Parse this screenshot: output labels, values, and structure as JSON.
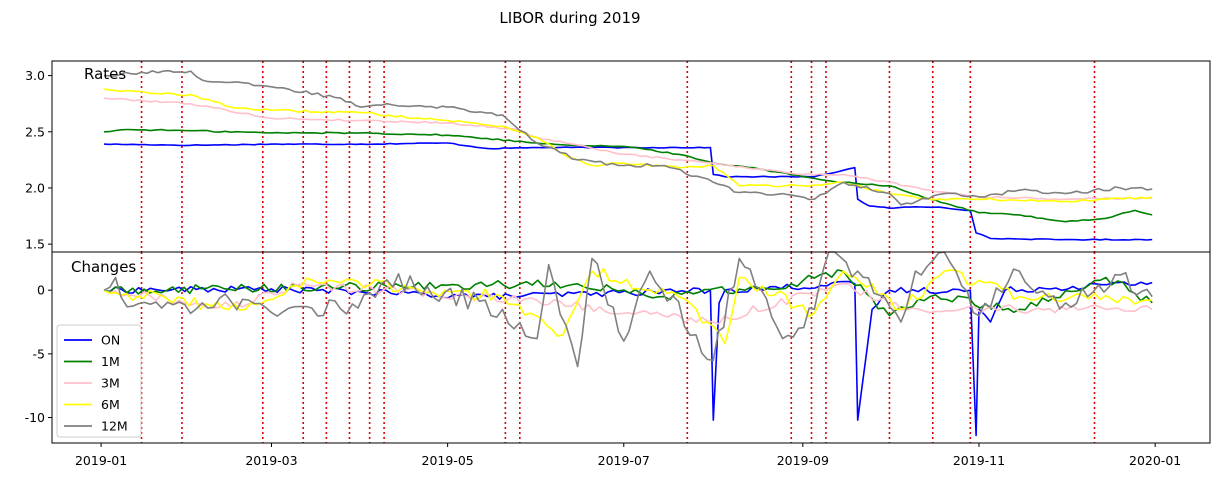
{
  "chart_data": {
    "type": "line",
    "title": "LIBOR during 2019",
    "x_start": "2019-01-01",
    "x_end": "2019-12-31",
    "x_domain": [
      "2018-12-15",
      "2020-01-20"
    ],
    "x_ticks": [
      "2019-01",
      "2019-03",
      "2019-05",
      "2019-07",
      "2019-09",
      "2019-11",
      "2020-01"
    ],
    "event_dates": [
      "2019-01-15",
      "2019-01-29",
      "2019-02-26",
      "2019-03-12",
      "2019-03-20",
      "2019-03-28",
      "2019-04-04",
      "2019-04-09",
      "2019-05-21",
      "2019-05-26",
      "2019-07-23",
      "2019-08-28",
      "2019-09-04",
      "2019-09-09",
      "2019-10-01",
      "2019-10-16",
      "2019-10-29",
      "2019-12-11"
    ],
    "event_color": "#e00000",
    "legend_placement": "lower-left",
    "series": [
      {
        "name": "ON",
        "color": "#0000ff"
      },
      {
        "name": "1M",
        "color": "#008000"
      },
      {
        "name": "3M",
        "color": "#ffc0cb"
      },
      {
        "name": "6M",
        "color": "#ffff00"
      },
      {
        "name": "12M",
        "color": "#808080"
      }
    ],
    "panels": [
      {
        "label": "Rates",
        "ylim": [
          1.43,
          3.13
        ],
        "yticks": [
          "1.5",
          "2.0",
          "2.5",
          "3.0"
        ],
        "values": {
          "ON": [
            [
              "2019-01-02",
              2.39
            ],
            [
              "2019-02-01",
              2.38
            ],
            [
              "2019-03-01",
              2.39
            ],
            [
              "2019-04-01",
              2.39
            ],
            [
              "2019-05-01",
              2.4
            ],
            [
              "2019-05-15",
              2.35
            ],
            [
              "2019-06-01",
              2.36
            ],
            [
              "2019-07-01",
              2.36
            ],
            [
              "2019-07-31",
              2.36
            ],
            [
              "2019-08-01",
              2.12
            ],
            [
              "2019-08-05",
              2.1
            ],
            [
              "2019-08-28",
              2.1
            ],
            [
              "2019-09-05",
              2.1
            ],
            [
              "2019-09-19",
              2.18
            ],
            [
              "2019-09-20",
              1.9
            ],
            [
              "2019-09-24",
              1.84
            ],
            [
              "2019-10-01",
              1.82
            ],
            [
              "2019-10-08",
              1.83
            ],
            [
              "2019-10-18",
              1.83
            ],
            [
              "2019-10-29",
              1.8
            ],
            [
              "2019-10-31",
              1.6
            ],
            [
              "2019-11-05",
              1.55
            ],
            [
              "2019-12-01",
              1.54
            ],
            [
              "2019-12-31",
              1.54
            ]
          ],
          "1M": [
            [
              "2019-01-02",
              2.5
            ],
            [
              "2019-01-10",
              2.52
            ],
            [
              "2019-02-01",
              2.51
            ],
            [
              "2019-03-01",
              2.49
            ],
            [
              "2019-04-01",
              2.49
            ],
            [
              "2019-05-01",
              2.47
            ],
            [
              "2019-06-01",
              2.4
            ],
            [
              "2019-06-15",
              2.38
            ],
            [
              "2019-07-01",
              2.37
            ],
            [
              "2019-07-20",
              2.3
            ],
            [
              "2019-08-01",
              2.22
            ],
            [
              "2019-08-15",
              2.18
            ],
            [
              "2019-09-01",
              2.1
            ],
            [
              "2019-09-15",
              2.05
            ],
            [
              "2019-10-01",
              2.02
            ],
            [
              "2019-10-15",
              1.9
            ],
            [
              "2019-11-01",
              1.78
            ],
            [
              "2019-11-15",
              1.76
            ],
            [
              "2019-12-01",
              1.7
            ],
            [
              "2019-12-15",
              1.73
            ],
            [
              "2019-12-25",
              1.8
            ],
            [
              "2019-12-31",
              1.76
            ]
          ],
          "3M": [
            [
              "2019-01-02",
              2.8
            ],
            [
              "2019-02-01",
              2.75
            ],
            [
              "2019-03-01",
              2.62
            ],
            [
              "2019-04-01",
              2.6
            ],
            [
              "2019-05-01",
              2.58
            ],
            [
              "2019-05-25",
              2.52
            ],
            [
              "2019-06-01",
              2.45
            ],
            [
              "2019-07-01",
              2.3
            ],
            [
              "2019-08-01",
              2.22
            ],
            [
              "2019-09-01",
              2.12
            ],
            [
              "2019-09-15",
              2.12
            ],
            [
              "2019-10-01",
              2.05
            ],
            [
              "2019-10-15",
              1.98
            ],
            [
              "2019-11-01",
              1.92
            ],
            [
              "2019-12-01",
              1.9
            ],
            [
              "2019-12-31",
              1.91
            ]
          ],
          "6M": [
            [
              "2019-01-02",
              2.88
            ],
            [
              "2019-01-20",
              2.84
            ],
            [
              "2019-02-01",
              2.83
            ],
            [
              "2019-02-15",
              2.72
            ],
            [
              "2019-03-01",
              2.69
            ],
            [
              "2019-04-01",
              2.67
            ],
            [
              "2019-05-01",
              2.6
            ],
            [
              "2019-05-20",
              2.55
            ],
            [
              "2019-06-01",
              2.45
            ],
            [
              "2019-06-10",
              2.3
            ],
            [
              "2019-06-20",
              2.2
            ],
            [
              "2019-07-01",
              2.22
            ],
            [
              "2019-07-20",
              2.18
            ],
            [
              "2019-08-01",
              2.2
            ],
            [
              "2019-08-10",
              2.02
            ],
            [
              "2019-09-01",
              2.02
            ],
            [
              "2019-09-15",
              2.05
            ],
            [
              "2019-10-01",
              1.95
            ],
            [
              "2019-10-15",
              1.9
            ],
            [
              "2019-11-01",
              1.9
            ],
            [
              "2019-12-01",
              1.88
            ],
            [
              "2019-12-15",
              1.9
            ],
            [
              "2019-12-31",
              1.92
            ]
          ],
          "12M": [
            [
              "2019-01-02",
              3.0
            ],
            [
              "2019-01-15",
              3.03
            ],
            [
              "2019-02-01",
              3.04
            ],
            [
              "2019-02-05",
              2.96
            ],
            [
              "2019-03-01",
              2.9
            ],
            [
              "2019-03-25",
              2.8
            ],
            [
              "2019-04-01",
              2.72
            ],
            [
              "2019-04-10",
              2.75
            ],
            [
              "2019-05-01",
              2.72
            ],
            [
              "2019-05-20",
              2.65
            ],
            [
              "2019-06-01",
              2.4
            ],
            [
              "2019-06-15",
              2.25
            ],
            [
              "2019-07-01",
              2.2
            ],
            [
              "2019-07-15",
              2.2
            ],
            [
              "2019-08-01",
              2.05
            ],
            [
              "2019-08-10",
              1.96
            ],
            [
              "2019-08-25",
              1.95
            ],
            [
              "2019-09-05",
              1.9
            ],
            [
              "2019-09-15",
              2.05
            ],
            [
              "2019-10-01",
              1.95
            ],
            [
              "2019-10-05",
              1.85
            ],
            [
              "2019-10-20",
              1.95
            ],
            [
              "2019-11-01",
              1.92
            ],
            [
              "2019-11-15",
              1.98
            ],
            [
              "2019-12-01",
              1.95
            ],
            [
              "2019-12-20",
              2.0
            ],
            [
              "2019-12-31",
              1.99
            ]
          ]
        }
      },
      {
        "label": "Changes",
        "ylim": [
          -12,
          3
        ],
        "yticks": [
          "-10",
          "-5",
          "0"
        ],
        "values": {
          "ON": [
            [
              "2019-01-02",
              0
            ],
            [
              "2019-03-01",
              0.1
            ],
            [
              "2019-05-15",
              -0.5
            ],
            [
              "2019-07-31",
              0
            ],
            [
              "2019-08-01",
              -10.2
            ],
            [
              "2019-08-03",
              -1.0
            ],
            [
              "2019-08-05",
              0
            ],
            [
              "2019-09-19",
              0.5
            ],
            [
              "2019-09-20",
              -10.2
            ],
            [
              "2019-09-23",
              -5.0
            ],
            [
              "2019-09-25",
              -1.5
            ],
            [
              "2019-10-01",
              0
            ],
            [
              "2019-10-29",
              0
            ],
            [
              "2019-10-31",
              -11.4
            ],
            [
              "2019-11-01",
              -1.5
            ],
            [
              "2019-11-05",
              -2.5
            ],
            [
              "2019-11-10",
              0
            ],
            [
              "2019-12-31",
              0.6
            ]
          ],
          "1M": [
            [
              "2019-01-02",
              0
            ],
            [
              "2019-04-15",
              0.3
            ],
            [
              "2019-06-15",
              0.5
            ],
            [
              "2019-07-15",
              -0.5
            ],
            [
              "2019-08-28",
              0.5
            ],
            [
              "2019-09-15",
              1.5
            ],
            [
              "2019-10-01",
              -2.0
            ],
            [
              "2019-10-15",
              -0.5
            ],
            [
              "2019-11-15",
              -1.5
            ],
            [
              "2019-12-15",
              1.0
            ],
            [
              "2019-12-31",
              -1.0
            ]
          ],
          "3M": [
            [
              "2019-01-02",
              0
            ],
            [
              "2019-02-15",
              -1.3
            ],
            [
              "2019-03-10",
              0.4
            ],
            [
              "2019-06-01",
              -0.8
            ],
            [
              "2019-08-01",
              -2.5
            ],
            [
              "2019-09-15",
              0.5
            ],
            [
              "2019-10-05",
              -1.5
            ],
            [
              "2019-12-31",
              -1.5
            ]
          ],
          "6M": [
            [
              "2019-01-02",
              0
            ],
            [
              "2019-02-20",
              -1.5
            ],
            [
              "2019-03-15",
              0.8
            ],
            [
              "2019-05-20",
              -0.5
            ],
            [
              "2019-06-10",
              -3.5
            ],
            [
              "2019-06-20",
              1.5
            ],
            [
              "2019-07-20",
              -0.5
            ],
            [
              "2019-08-05",
              -4.2
            ],
            [
              "2019-08-10",
              1.0
            ],
            [
              "2019-09-05",
              -1.8
            ],
            [
              "2019-09-15",
              1.5
            ],
            [
              "2019-10-05",
              -1.5
            ],
            [
              "2019-10-20",
              1.5
            ],
            [
              "2019-11-15",
              -0.5
            ],
            [
              "2019-12-31",
              -0.8
            ]
          ],
          "12M": [
            [
              "2019-01-02",
              0
            ],
            [
              "2019-01-06",
              1.0
            ],
            [
              "2019-01-10",
              -1.3
            ],
            [
              "2019-02-05",
              -1.0
            ],
            [
              "2019-03-25",
              -1.5
            ],
            [
              "2019-04-10",
              0.8
            ],
            [
              "2019-05-20",
              -1.5
            ],
            [
              "2019-06-01",
              -3.8
            ],
            [
              "2019-06-05",
              2.0
            ],
            [
              "2019-06-15",
              -6.0
            ],
            [
              "2019-06-20",
              2.5
            ],
            [
              "2019-07-01",
              -4.0
            ],
            [
              "2019-07-10",
              1.5
            ],
            [
              "2019-08-01",
              -5.5
            ],
            [
              "2019-08-10",
              2.5
            ],
            [
              "2019-08-25",
              -3.8
            ],
            [
              "2019-09-05",
              -1.5
            ],
            [
              "2019-09-10",
              3.2
            ],
            [
              "2019-09-20",
              1.5
            ],
            [
              "2019-10-05",
              -2.5
            ],
            [
              "2019-10-10",
              1.5
            ],
            [
              "2019-10-20",
              3.2
            ],
            [
              "2019-11-01",
              -2.0
            ],
            [
              "2019-11-15",
              1.5
            ],
            [
              "2019-12-01",
              -1.0
            ],
            [
              "2019-12-20",
              1.2
            ],
            [
              "2019-12-31",
              -0.5
            ]
          ]
        }
      }
    ]
  }
}
